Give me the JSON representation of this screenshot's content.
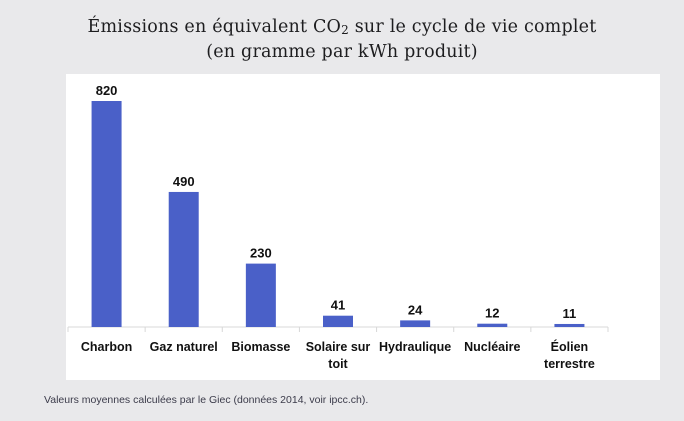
{
  "chart_data": {
    "type": "bar",
    "title_line1_prefix": "Émissions en équivalent CO",
    "title_line1_sub": "2",
    "title_line1_suffix": " sur le cycle de vie complet",
    "title_line2": "(en gramme par kWh produit)",
    "categories": [
      [
        "Charbon"
      ],
      [
        "Gaz naturel"
      ],
      [
        "Biomasse"
      ],
      [
        "Solaire sur",
        "toit"
      ],
      [
        "Hydraulique"
      ],
      [
        "Nucléaire"
      ],
      [
        "Éolien",
        "terrestre"
      ]
    ],
    "values": [
      820,
      490,
      230,
      41,
      24,
      12,
      11
    ],
    "data_labels": [
      "820",
      "490",
      "230",
      "41",
      "24",
      "12",
      "11"
    ],
    "ylim": [
      0,
      820
    ],
    "bar_color": "#4a60c8",
    "axis_color": "#d8d8d8",
    "grid": false,
    "legend": false
  },
  "caption": "Valeurs moyennes calculées par le Giec (données 2014, voir ipcc.ch)."
}
